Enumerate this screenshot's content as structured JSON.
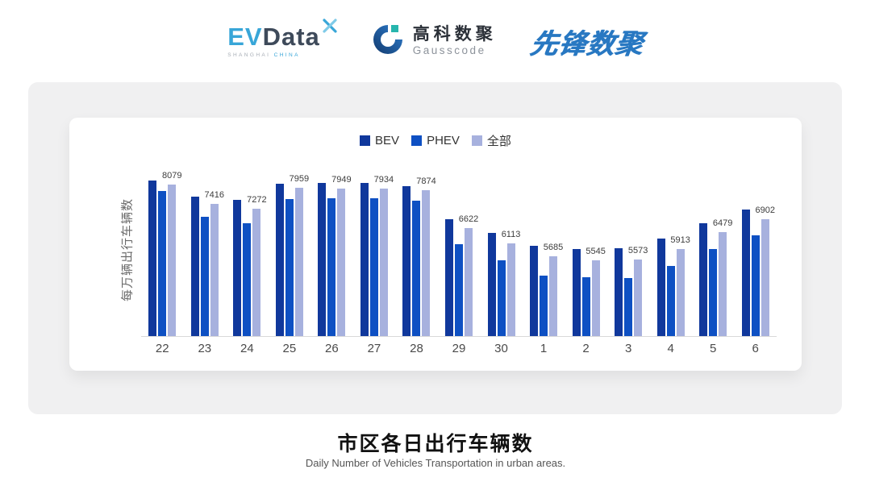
{
  "header": {
    "evdata": {
      "ev": "EV",
      "data": "Data",
      "sub1": "SHANGHAI",
      "sub2": "CHINA"
    },
    "gausscode": {
      "name_cn": "高科数聚",
      "name_en": "Gausscode"
    },
    "pioneer": {
      "name": "先锋数聚"
    }
  },
  "chart_data": {
    "type": "bar",
    "title": "市区各日出行车辆数",
    "categories": [
      "22",
      "23",
      "24",
      "25",
      "26",
      "27",
      "28",
      "29",
      "30",
      "1",
      "2",
      "3",
      "4",
      "5",
      "6"
    ],
    "series": [
      {
        "name": "BEV",
        "color": "#10389c",
        "data_labels": false,
        "values": [
          8210,
          7680,
          7550,
          8100,
          8130,
          8130,
          8025,
          6920,
          6465,
          6035,
          5925,
          5930,
          6275,
          6775,
          7235
        ]
      },
      {
        "name": "PHEV",
        "color": "#0e50c3",
        "data_labels": false,
        "values": [
          7855,
          7005,
          6790,
          7600,
          7610,
          7620,
          7540,
          6080,
          5525,
          5030,
          4960,
          4935,
          5345,
          5910,
          6370
        ]
      },
      {
        "name": "全部",
        "color": "#a7b1de",
        "data_labels": true,
        "values": [
          8079,
          7416,
          7272,
          7959,
          7949,
          7934,
          7874,
          6622,
          6113,
          5685,
          5545,
          5573,
          5913,
          6479,
          6902
        ]
      }
    ],
    "data_label_values": [
      "8079",
      "7416",
      "7272",
      "7959",
      "7949",
      "7934",
      "7874",
      "6622",
      "6113",
      "5685",
      "5545",
      "5573",
      "5913",
      "6479",
      "6902"
    ],
    "xlabel": "",
    "ylabel": "每万辆出行车辆数",
    "ylim": [
      3000,
      8400
    ],
    "grid": false,
    "legend_position": "top-center"
  },
  "footer": {
    "title": "市区各日出行车辆数",
    "subtitle": "Daily Number of Vehicles Transportation in urban areas."
  }
}
